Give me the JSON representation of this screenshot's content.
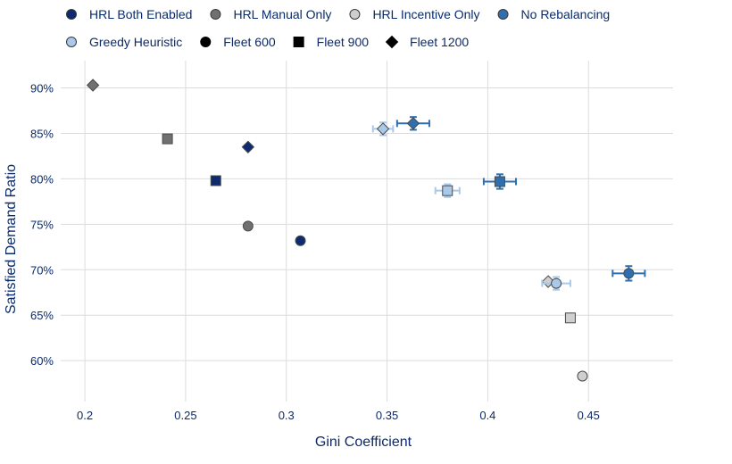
{
  "chart_data": {
    "type": "scatter",
    "title": "",
    "xlabel": "Gini Coefficient",
    "ylabel": "Satisfied Demand Ratio",
    "xlim": [
      0.188,
      0.492
    ],
    "ylim": [
      0.555,
      0.93
    ],
    "x_ticks": [
      0.2,
      0.25,
      0.3,
      0.35,
      0.4,
      0.45
    ],
    "x_tick_labels": [
      "0.2",
      "0.25",
      "0.3",
      "0.35",
      "0.4",
      "0.45"
    ],
    "y_ticks": [
      0.6,
      0.65,
      0.7,
      0.75,
      0.8,
      0.85,
      0.9
    ],
    "y_tick_labels": [
      "60%",
      "65%",
      "70%",
      "75%",
      "80%",
      "85%",
      "90%"
    ],
    "grid": true,
    "legend_position": "top",
    "methods": [
      {
        "name": "HRL Both Enabled",
        "color": "#0d2b6e"
      },
      {
        "name": "HRL Manual Only",
        "color": "#707070"
      },
      {
        "name": "HRL Incentive Only",
        "color": "#cfcfcf"
      },
      {
        "name": "No Rebalancing",
        "color": "#2f6fb0"
      },
      {
        "name": "Greedy Heuristic",
        "color": "#a9c8ea"
      }
    ],
    "fleets": [
      {
        "name": "Fleet 600",
        "marker": "circle"
      },
      {
        "name": "Fleet 900",
        "marker": "square"
      },
      {
        "name": "Fleet 1200",
        "marker": "diamond"
      }
    ],
    "points": [
      {
        "method": 0,
        "fleet": 0,
        "x": 0.307,
        "y": 0.732
      },
      {
        "method": 0,
        "fleet": 1,
        "x": 0.265,
        "y": 0.798
      },
      {
        "method": 0,
        "fleet": 2,
        "x": 0.281,
        "y": 0.835
      },
      {
        "method": 1,
        "fleet": 0,
        "x": 0.281,
        "y": 0.748
      },
      {
        "method": 1,
        "fleet": 1,
        "x": 0.241,
        "y": 0.844
      },
      {
        "method": 1,
        "fleet": 2,
        "x": 0.204,
        "y": 0.903
      },
      {
        "method": 2,
        "fleet": 0,
        "x": 0.447,
        "y": 0.583
      },
      {
        "method": 2,
        "fleet": 1,
        "x": 0.441,
        "y": 0.647
      },
      {
        "method": 2,
        "fleet": 2,
        "x": 0.43,
        "y": 0.687
      },
      {
        "method": 3,
        "fleet": 0,
        "x": 0.47,
        "y": 0.696,
        "x_err": 0.008,
        "y_err": 0.008
      },
      {
        "method": 3,
        "fleet": 1,
        "x": 0.406,
        "y": 0.797,
        "x_err": 0.008,
        "y_err": 0.008
      },
      {
        "method": 3,
        "fleet": 2,
        "x": 0.363,
        "y": 0.861,
        "x_err": 0.008,
        "y_err": 0.007
      },
      {
        "method": 4,
        "fleet": 0,
        "x": 0.434,
        "y": 0.685,
        "x_err": 0.007,
        "y_err": 0.007
      },
      {
        "method": 4,
        "fleet": 1,
        "x": 0.38,
        "y": 0.787,
        "x_err": 0.006,
        "y_err": 0.007
      },
      {
        "method": 4,
        "fleet": 2,
        "x": 0.348,
        "y": 0.855,
        "x_err": 0.005,
        "y_err": 0.007
      }
    ]
  }
}
